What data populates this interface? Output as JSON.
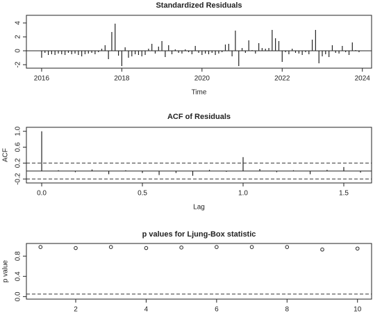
{
  "chart_data": [
    {
      "type": "needle",
      "title": "Standardized Residuals",
      "x_label": "Time",
      "x": [
        2016,
        2016.083,
        2016.167,
        2016.25,
        2016.333,
        2016.417,
        2016.5,
        2016.583,
        2016.667,
        2016.75,
        2016.833,
        2016.917,
        2017,
        2017.083,
        2017.167,
        2017.25,
        2017.333,
        2017.417,
        2017.5,
        2017.583,
        2017.667,
        2017.75,
        2017.833,
        2017.917,
        2018,
        2018.083,
        2018.167,
        2018.25,
        2018.333,
        2018.417,
        2018.5,
        2018.583,
        2018.667,
        2018.75,
        2018.833,
        2018.917,
        2019,
        2019.083,
        2019.167,
        2019.25,
        2019.333,
        2019.417,
        2019.5,
        2019.583,
        2019.667,
        2019.75,
        2019.833,
        2019.917,
        2020,
        2020.083,
        2020.167,
        2020.25,
        2020.333,
        2020.417,
        2020.5,
        2020.583,
        2020.667,
        2020.75,
        2020.833,
        2020.917,
        2021,
        2021.083,
        2021.167,
        2021.25,
        2021.333,
        2021.417,
        2021.5,
        2021.583,
        2021.667,
        2021.75,
        2021.833,
        2021.917,
        2022,
        2022.083,
        2022.167,
        2022.25,
        2022.333,
        2022.417,
        2022.5,
        2022.583,
        2022.667,
        2022.75,
        2022.833,
        2022.917,
        2023,
        2023.083,
        2023.167,
        2023.25,
        2023.333,
        2023.417,
        2023.5,
        2023.583,
        2023.667,
        2023.75,
        2023.833,
        2023.917
      ],
      "values": [
        -1.0,
        -0.3,
        -0.6,
        -0.5,
        -0.6,
        -0.4,
        -0.5,
        -0.6,
        -0.3,
        -0.5,
        -0.4,
        -0.6,
        -0.8,
        -0.5,
        -0.4,
        -0.3,
        -0.5,
        -0.2,
        0.3,
        0.8,
        -1.2,
        2.7,
        3.9,
        -0.7,
        -2.2,
        0.5,
        -1.0,
        -0.8,
        -0.5,
        -0.6,
        -0.8,
        -0.6,
        0.3,
        1.0,
        -0.4,
        0.6,
        1.4,
        -0.9,
        0.8,
        -0.5,
        0.2,
        -0.3,
        -0.4,
        0.2,
        -0.2,
        -0.5,
        0.7,
        -0.3,
        -0.6,
        -0.4,
        -0.5,
        -0.3,
        -0.6,
        -0.4,
        -0.2,
        0.9,
        1.0,
        -0.8,
        2.9,
        -2.2,
        0.4,
        -0.3,
        1.5,
        0.1,
        -0.4,
        1.1,
        0.4,
        0.3,
        0.4,
        3.0,
        1.8,
        1.4,
        -1.6,
        -0.2,
        -0.5,
        0.3,
        -0.3,
        -0.4,
        -0.6,
        -0.2,
        -0.5,
        1.6,
        3.0,
        -1.8,
        -0.8,
        -0.5,
        -0.9,
        0.8,
        -0.3,
        -0.4,
        0.7,
        -0.2,
        -0.6,
        1.2,
        0.1,
        -0.2
      ],
      "xlim": [
        2015.62,
        2024.23
      ],
      "xticks": [
        2016,
        2018,
        2020,
        2022,
        2024
      ],
      "ylim": [
        -2.5,
        5.1
      ],
      "yticks": [
        -2,
        0,
        2,
        4
      ]
    },
    {
      "type": "acf",
      "title": "ACF of Residuals",
      "x_label": "Lag",
      "y_label": "ACF",
      "x": [
        0,
        0.083,
        0.167,
        0.25,
        0.333,
        0.417,
        0.5,
        0.583,
        0.667,
        0.75,
        0.833,
        0.917,
        1,
        1.083,
        1.167,
        1.25,
        1.333,
        1.417,
        1.5,
        1.583
      ],
      "values": [
        1.0,
        0.02,
        -0.03,
        0.04,
        -0.08,
        0.02,
        -0.05,
        -0.1,
        -0.05,
        -0.12,
        0.03,
        -0.02,
        0.35,
        0.05,
        -0.03,
        0.02,
        -0.08,
        0.03,
        0.1,
        -0.04
      ],
      "ci": 0.2,
      "xlim": [
        -0.076,
        1.638
      ],
      "xticks": [
        {
          "value": 0,
          "label": "0.0"
        },
        0.5,
        {
          "value": 1,
          "label": "1.0"
        },
        1.5
      ],
      "ylim": [
        -0.3,
        1.1
      ],
      "yticks": [
        -0.2,
        0.2,
        0.6,
        {
          "value": 1,
          "label": "1.0"
        }
      ]
    },
    {
      "type": "scatter",
      "title": "p values for Ljung-Box statistic",
      "y_label": "p value",
      "x": [
        1,
        2,
        3,
        4,
        5,
        6,
        7,
        8,
        9,
        10
      ],
      "values": [
        0.98,
        0.96,
        0.98,
        0.96,
        0.97,
        0.98,
        0.98,
        0.98,
        0.93,
        0.95
      ],
      "threshold": 0.05,
      "xlim": [
        0.6,
        10.4
      ],
      "xticks": [
        2,
        4,
        6,
        8,
        10
      ],
      "ylim": [
        -0.05,
        1.05
      ],
      "yticks": [
        {
          "value": 0,
          "label": "0.0"
        },
        0.4,
        0.8
      ]
    }
  ]
}
